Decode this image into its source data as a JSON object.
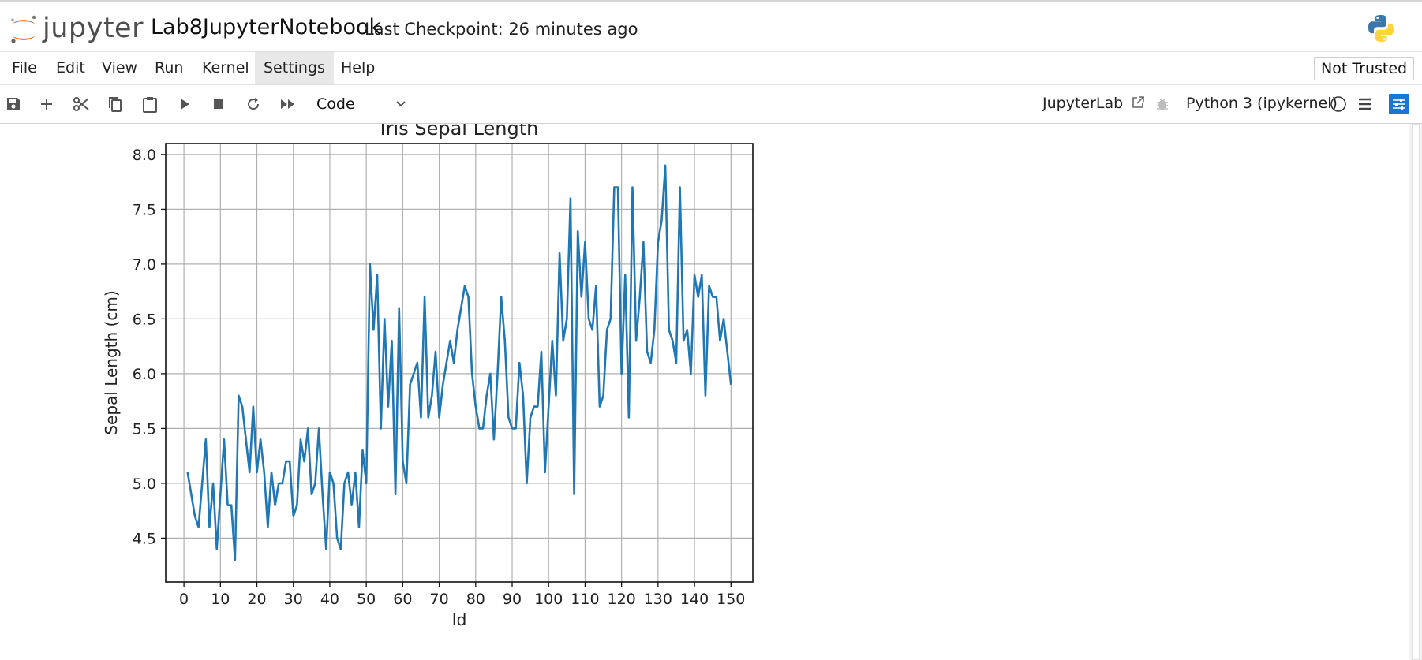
{
  "header": {
    "logo_text": "jupyter",
    "notebook_name": "Lab8JupyterNotebook",
    "checkpoint": "Last Checkpoint: 26 minutes ago",
    "kernel_logo_icon": "python-logo-icon"
  },
  "menubar": {
    "items": [
      "File",
      "Edit",
      "View",
      "Run",
      "Kernel",
      "Settings",
      "Help"
    ],
    "active": "Settings",
    "trust_status": "Not Trusted"
  },
  "toolbar": {
    "buttons": [
      "save-icon",
      "add-cell-icon",
      "cut-icon",
      "copy-icon",
      "paste-icon",
      "run-icon",
      "stop-icon",
      "restart-icon",
      "fast-forward-icon"
    ],
    "cell_type": "Code",
    "jupyterlab_label": "JupyterLab",
    "kernel_name": "Python 3 (ipykernel)",
    "kernel_status": "idle",
    "accent_color": "#1976d2"
  },
  "chart_data": {
    "type": "line",
    "title": "Iris Sepal Length",
    "xlabel": "Id",
    "ylabel": "Sepal Length (cm)",
    "xlim": [
      -5,
      156
    ],
    "ylim": [
      4.1,
      8.1
    ],
    "xticks": [
      0,
      10,
      20,
      30,
      40,
      50,
      60,
      70,
      80,
      90,
      100,
      110,
      120,
      130,
      140,
      150
    ],
    "xtick_labels": [
      "0",
      "10",
      "20",
      "30",
      "40",
      "50",
      "60",
      "70",
      "80",
      "90",
      "100",
      "110",
      "120",
      "130",
      "140",
      "150"
    ],
    "yticks": [
      4.5,
      5.0,
      5.5,
      6.0,
      6.5,
      7.0,
      7.5,
      8.0
    ],
    "ytick_labels": [
      "4.5",
      "5.0",
      "5.5",
      "6.0",
      "6.5",
      "7.0",
      "7.5",
      "8.0"
    ],
    "grid": true,
    "line_color": "#1f77b4",
    "x_start": 1,
    "x_step": 1,
    "values": [
      5.1,
      4.9,
      4.7,
      4.6,
      5.0,
      5.4,
      4.6,
      5.0,
      4.4,
      4.9,
      5.4,
      4.8,
      4.8,
      4.3,
      5.8,
      5.7,
      5.4,
      5.1,
      5.7,
      5.1,
      5.4,
      5.1,
      4.6,
      5.1,
      4.8,
      5.0,
      5.0,
      5.2,
      5.2,
      4.7,
      4.8,
      5.4,
      5.2,
      5.5,
      4.9,
      5.0,
      5.5,
      4.9,
      4.4,
      5.1,
      5.0,
      4.5,
      4.4,
      5.0,
      5.1,
      4.8,
      5.1,
      4.6,
      5.3,
      5.0,
      7.0,
      6.4,
      6.9,
      5.5,
      6.5,
      5.7,
      6.3,
      4.9,
      6.6,
      5.2,
      5.0,
      5.9,
      6.0,
      6.1,
      5.6,
      6.7,
      5.6,
      5.8,
      6.2,
      5.6,
      5.9,
      6.1,
      6.3,
      6.1,
      6.4,
      6.6,
      6.8,
      6.7,
      6.0,
      5.7,
      5.5,
      5.5,
      5.8,
      6.0,
      5.4,
      6.0,
      6.7,
      6.3,
      5.6,
      5.5,
      5.5,
      6.1,
      5.8,
      5.0,
      5.6,
      5.7,
      5.7,
      6.2,
      5.1,
      5.7,
      6.3,
      5.8,
      7.1,
      6.3,
      6.5,
      7.6,
      4.9,
      7.3,
      6.7,
      7.2,
      6.5,
      6.4,
      6.8,
      5.7,
      5.8,
      6.4,
      6.5,
      7.7,
      7.7,
      6.0,
      6.9,
      5.6,
      7.7,
      6.3,
      6.7,
      7.2,
      6.2,
      6.1,
      6.4,
      7.2,
      7.4,
      7.9,
      6.4,
      6.3,
      6.1,
      7.7,
      6.3,
      6.4,
      6.0,
      6.9,
      6.7,
      6.9,
      5.8,
      6.8,
      6.7,
      6.7,
      6.3,
      6.5,
      6.2,
      5.9
    ]
  }
}
